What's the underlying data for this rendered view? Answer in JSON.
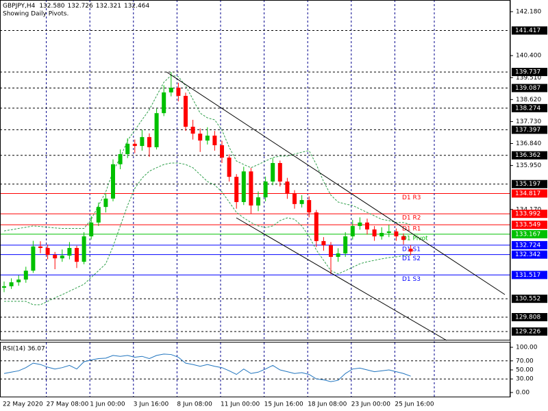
{
  "chart_data": [
    {
      "type": "candlestick",
      "title": "GBPJPY,H4",
      "ohlc_labels": [
        "132.580",
        "132.726",
        "132.321",
        "132.464"
      ],
      "subtitle": "Showing Daily Pivots.",
      "categories": [
        "22 May 2020",
        null,
        null,
        null,
        null,
        null,
        "27 May 08:00",
        null,
        null,
        null,
        null,
        null,
        "1 Jun 00:00",
        null,
        null,
        null,
        null,
        null,
        "3 Jun 16:00",
        null,
        null,
        null,
        null,
        null,
        "8 Jun 08:00",
        null,
        null,
        null,
        null,
        null,
        "11 Jun 00:00",
        null,
        null,
        null,
        null,
        null,
        "15 Jun 16:00",
        null,
        null,
        null,
        null,
        null,
        "18 Jun 08:00",
        null,
        null,
        null,
        null,
        null,
        "23 Jun 00:00",
        null,
        null,
        null,
        null,
        null,
        "25 Jun 16:00",
        null,
        null
      ],
      "open": [
        131.0,
        131.06,
        131.22,
        131.33,
        131.69,
        132.67,
        132.61,
        132.33,
        132.19,
        132.3,
        132.61,
        132.05,
        133.08,
        133.64,
        134.27,
        134.61,
        136.0,
        136.41,
        136.83,
        136.74,
        137.1,
        136.69,
        138.07,
        138.91,
        139.1,
        138.77,
        137.52,
        137.24,
        136.96,
        137.16,
        136.77,
        136.27,
        135.49,
        134.47,
        135.71,
        134.33,
        134.66,
        135.3,
        136.05,
        135.3,
        134.83,
        134.39,
        134.55,
        134.05,
        132.89,
        132.72,
        132.25,
        132.39,
        133.08,
        133.5,
        133.64,
        133.36,
        133.08,
        133.22,
        133.28,
        133.08,
        132.58
      ],
      "high": [
        131.25,
        131.38,
        131.5,
        131.85,
        132.9,
        132.88,
        132.75,
        132.45,
        132.55,
        132.85,
        132.7,
        133.25,
        133.9,
        134.45,
        134.8,
        136.2,
        136.6,
        137.05,
        137.0,
        137.4,
        137.25,
        138.25,
        139.2,
        139.737,
        139.3,
        138.9,
        137.8,
        137.45,
        137.5,
        137.35,
        136.95,
        136.4,
        135.6,
        135.9,
        135.85,
        134.9,
        135.5,
        136.25,
        136.15,
        135.45,
        134.95,
        134.75,
        134.7,
        134.15,
        133.05,
        132.85,
        132.6,
        133.25,
        133.75,
        133.85,
        133.8,
        133.5,
        133.45,
        133.55,
        133.4,
        133.2,
        132.726
      ],
      "low": [
        130.82,
        130.95,
        131.08,
        131.2,
        131.6,
        132.4,
        132.15,
        131.75,
        132.05,
        132.15,
        131.8,
        131.95,
        132.95,
        133.5,
        134.05,
        134.5,
        135.8,
        136.25,
        136.45,
        136.55,
        136.3,
        136.6,
        137.95,
        138.75,
        138.55,
        137.35,
        137.0,
        136.5,
        136.8,
        136.55,
        136.05,
        135.3,
        134.2,
        134.35,
        134.0,
        134.1,
        134.5,
        135.15,
        135.1,
        134.6,
        134.2,
        134.25,
        133.85,
        132.65,
        132.5,
        131.55,
        132.05,
        132.25,
        132.95,
        133.35,
        133.15,
        132.9,
        132.95,
        133.05,
        132.9,
        132.75,
        132.321
      ],
      "close": [
        131.06,
        131.22,
        131.33,
        131.69,
        132.67,
        132.61,
        132.33,
        132.19,
        132.3,
        132.61,
        132.05,
        133.08,
        133.64,
        134.27,
        134.61,
        136.0,
        136.41,
        136.83,
        136.74,
        137.1,
        136.69,
        138.07,
        138.91,
        139.1,
        138.77,
        137.52,
        137.24,
        136.96,
        137.16,
        136.77,
        136.27,
        135.49,
        134.47,
        135.71,
        134.33,
        134.66,
        135.3,
        136.05,
        135.3,
        134.83,
        134.39,
        134.55,
        134.05,
        132.89,
        132.72,
        132.25,
        132.39,
        133.08,
        133.5,
        133.64,
        133.36,
        133.08,
        133.22,
        133.28,
        133.08,
        132.94,
        132.464
      ],
      "up_color": "#00c000",
      "down_color": "#ff0000",
      "bands": {
        "color": "#2e9e4a",
        "upper": [
          133.3,
          133.35,
          133.4,
          133.45,
          133.5,
          133.48,
          133.45,
          133.42,
          133.4,
          133.4,
          133.4,
          133.4,
          133.77,
          134.33,
          134.88,
          135.72,
          136.27,
          136.96,
          137.38,
          137.8,
          138.21,
          138.77,
          139.32,
          139.6,
          139.55,
          139.18,
          138.63,
          138.07,
          137.88,
          137.8,
          137.38,
          136.69,
          136.13,
          135.99,
          135.86,
          135.99,
          136.13,
          136.27,
          136.33,
          136.33,
          136.41,
          136.49,
          136.55,
          135.99,
          135.3,
          134.75,
          134.47,
          134.39,
          134.33,
          134.19,
          134.05,
          133.91,
          133.77,
          133.72,
          133.64,
          133.64,
          133.55
        ],
        "lower": [
          130.45,
          130.45,
          130.45,
          130.45,
          130.31,
          130.31,
          130.45,
          130.59,
          130.72,
          130.86,
          131.0,
          131.14,
          131.42,
          131.69,
          131.97,
          132.67,
          133.5,
          134.33,
          135.02,
          135.44,
          135.72,
          135.86,
          135.99,
          136.05,
          136.05,
          135.99,
          135.86,
          135.58,
          135.3,
          135.16,
          134.88,
          134.47,
          134.05,
          133.83,
          133.64,
          133.5,
          133.44,
          133.5,
          133.72,
          133.83,
          133.77,
          133.5,
          133.08,
          132.53,
          132.11,
          131.69,
          131.56,
          131.69,
          131.83,
          131.97,
          132.05,
          132.11,
          132.17,
          132.22,
          132.25,
          132.3,
          132.33
        ]
      },
      "levels": [
        141.417,
        139.737,
        139.087,
        138.274,
        137.397,
        136.362,
        135.197,
        130.552,
        129.808,
        129.226
      ],
      "pivots": [
        {
          "label": "D1 R3",
          "value": 134.817,
          "color": "#ff0000"
        },
        {
          "label": "D1 R2",
          "value": 133.992,
          "color": "#ff0000"
        },
        {
          "label": "D1 R1",
          "value": 133.549,
          "color": "#ff0000"
        },
        {
          "label": "D1 Pivot",
          "value": 133.167,
          "color": "#00c000"
        },
        {
          "label": "D1 S1",
          "value": 132.724,
          "color": "#0000ff"
        },
        {
          "label": "D1 S2",
          "value": 132.342,
          "color": "#0000ff"
        },
        {
          "label": "D1 S3",
          "value": 131.517,
          "color": "#0000ff"
        }
      ],
      "ylim": [
        128.865,
        142.652
      ],
      "yticks": [
        {
          "value": 142.18,
          "label": "142.180"
        },
        {
          "value": 140.4,
          "label": "140.400"
        },
        {
          "value": 139.51,
          "label": "139.510"
        },
        {
          "value": 138.62,
          "label": "138.620"
        },
        {
          "value": 137.73,
          "label": "137.730"
        },
        {
          "value": 136.84,
          "label": "136.840"
        },
        {
          "value": 135.95,
          "label": "135.950"
        },
        {
          "value": 134.17,
          "label": "134.170"
        }
      ],
      "grid": true
    },
    {
      "type": "line",
      "title": "RSI(14) 36.07",
      "color": "#1e73be",
      "values": [
        42,
        45,
        48,
        55,
        65,
        62,
        56,
        52,
        55,
        60,
        52,
        68,
        72,
        75,
        76,
        82,
        80,
        82,
        78,
        80,
        75,
        82,
        85,
        84,
        78,
        65,
        62,
        58,
        62,
        58,
        55,
        48,
        40,
        52,
        42,
        45,
        52,
        60,
        50,
        46,
        42,
        44,
        40,
        30,
        28,
        24,
        27,
        42,
        52,
        54,
        50,
        46,
        48,
        50,
        46,
        42,
        36.07
      ],
      "levels": [
        70,
        30
      ],
      "ylim": [
        -10.6,
        110.6
      ],
      "yticks": [
        {
          "value": 100,
          "label": "100.00"
        },
        {
          "value": 70,
          "label": "70.00"
        },
        {
          "value": 50,
          "label": "50.00"
        },
        {
          "value": 30,
          "label": "30.00"
        },
        {
          "value": 0,
          "label": "0.00"
        }
      ]
    }
  ]
}
